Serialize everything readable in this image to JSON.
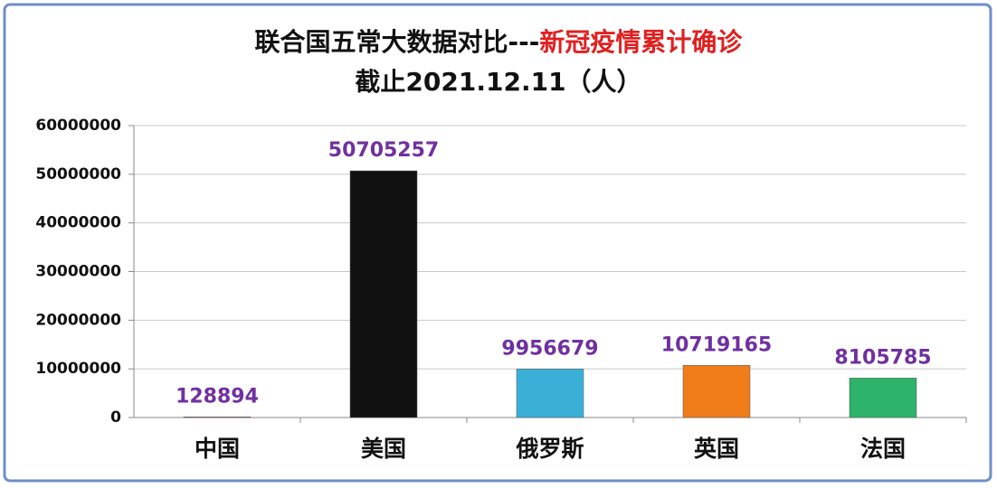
{
  "chart_data": {
    "type": "bar",
    "title": "联合国五常大数据对比---",
    "title_highlight": "新冠疫情累计确诊",
    "subtitle": "截止2021.12.11（人）",
    "categories": [
      "中国",
      "美国",
      "俄罗斯",
      "英国",
      "法国"
    ],
    "values": [
      128894,
      50705257,
      9956679,
      10719165,
      8105785
    ],
    "colors": [
      "#b5656f",
      "#111111",
      "#3aafd6",
      "#f07d1a",
      "#2db36a"
    ],
    "value_label_color": "#7030a0",
    "title_highlight_color": "#e02020",
    "ylim": [
      0,
      60000000
    ],
    "yticks": [
      0,
      10000000,
      20000000,
      30000000,
      40000000,
      50000000,
      60000000
    ],
    "grid": true
  }
}
